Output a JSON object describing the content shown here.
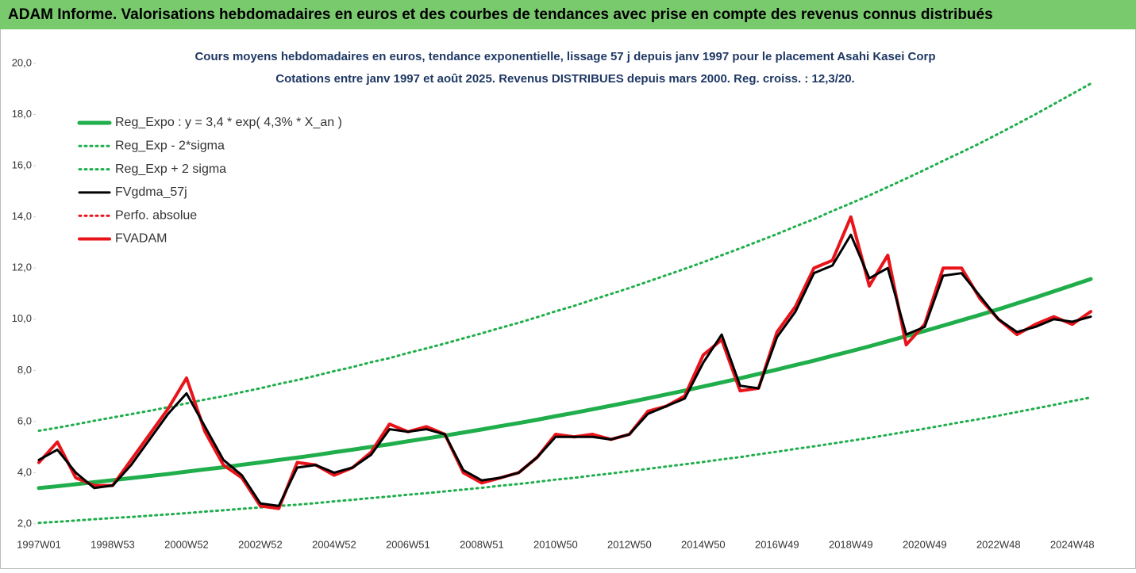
{
  "header": {
    "title": "ADAM Informe. Valorisations hebdomadaires en euros et des courbes de tendances avec prise en compte des revenus connus distribués"
  },
  "chart_data": {
    "type": "line",
    "title": "Cours moyens hebdomadaires en euros, tendance exponentielle, lissage 57 j depuis janv 1997 pour le placement Asahi Kasei Corp",
    "subtitle": "Cotations entre janv 1997 et août 2025. Revenus DISTRIBUES depuis mars 2000. Reg. croiss. : 12,3/20.",
    "categories": [
      "1997W01",
      null,
      null,
      null,
      "1998W53",
      null,
      null,
      null,
      "2000W52",
      null,
      null,
      null,
      "2002W52",
      null,
      null,
      null,
      "2004W52",
      null,
      null,
      null,
      "2006W51",
      null,
      null,
      null,
      "2008W51",
      null,
      null,
      null,
      "2010W50",
      null,
      null,
      null,
      "2012W50",
      null,
      null,
      null,
      "2014W50",
      null,
      null,
      null,
      "2016W49",
      null,
      null,
      null,
      "2018W49",
      null,
      null,
      null,
      "2020W49",
      null,
      null,
      null,
      "2022W48",
      null,
      null,
      null,
      "2024W48",
      null
    ],
    "ylim": [
      2,
      20
    ],
    "yticks": [
      {
        "value": 2,
        "label": "2,0"
      },
      {
        "value": 4,
        "label": "4,0"
      },
      {
        "value": 6,
        "label": "6,0"
      },
      {
        "value": 8,
        "label": "8,0"
      },
      {
        "value": 10,
        "label": "10,0"
      },
      {
        "value": 12,
        "label": "12,0"
      },
      {
        "value": 14,
        "label": "14,0"
      },
      {
        "value": 16,
        "label": "16,0"
      },
      {
        "value": 18,
        "label": "18,0"
      },
      {
        "value": 20,
        "label": "20,0"
      }
    ],
    "grid": false,
    "legend": "top-left",
    "series": [
      {
        "name": "Reg_Expo : y = 3,4 * exp( 4,3% *  X_an )",
        "color": "#1fae4b",
        "style": "solid",
        "width": 5,
        "values": [
          3.4,
          3.47,
          3.55,
          3.63,
          3.71,
          3.79,
          3.87,
          3.95,
          4.04,
          4.13,
          4.21,
          4.31,
          4.4,
          4.5,
          4.59,
          4.69,
          4.8,
          4.9,
          5.01,
          5.11,
          5.23,
          5.34,
          5.45,
          5.57,
          5.69,
          5.82,
          5.94,
          6.07,
          6.21,
          6.34,
          6.48,
          6.62,
          6.76,
          6.91,
          7.06,
          7.21,
          7.37,
          7.53,
          7.69,
          7.86,
          8.03,
          8.21,
          8.38,
          8.57,
          8.75,
          8.94,
          9.14,
          9.34,
          9.54,
          9.75,
          9.96,
          10.17,
          10.39,
          10.62,
          10.85,
          11.09,
          11.33,
          11.57
        ]
      },
      {
        "name": "Reg_Exp - 2*sigma",
        "color": "#1fae4b",
        "style": "dotted",
        "width": 3,
        "values": [
          2.04,
          2.08,
          2.13,
          2.18,
          2.23,
          2.27,
          2.32,
          2.37,
          2.42,
          2.48,
          2.53,
          2.59,
          2.64,
          2.7,
          2.75,
          2.81,
          2.88,
          2.94,
          3.01,
          3.07,
          3.14,
          3.2,
          3.27,
          3.34,
          3.41,
          3.49,
          3.56,
          3.64,
          3.73,
          3.8,
          3.89,
          3.97,
          4.06,
          4.15,
          4.24,
          4.33,
          4.42,
          4.52,
          4.61,
          4.72,
          4.82,
          4.93,
          5.03,
          5.14,
          5.25,
          5.36,
          5.48,
          5.6,
          5.72,
          5.85,
          5.98,
          6.1,
          6.23,
          6.37,
          6.51,
          6.65,
          6.8,
          6.94
        ]
      },
      {
        "name": "Reg_Exp + 2 sigma",
        "color": "#1fae4b",
        "style": "dotted",
        "width": 3,
        "values": [
          5.64,
          5.76,
          5.89,
          6.03,
          6.16,
          6.29,
          6.42,
          6.56,
          6.71,
          6.86,
          6.99,
          7.15,
          7.3,
          7.47,
          7.62,
          7.79,
          7.97,
          8.13,
          8.32,
          8.48,
          8.68,
          8.86,
          9.05,
          9.25,
          9.45,
          9.66,
          9.86,
          10.08,
          10.31,
          10.52,
          10.76,
          10.99,
          11.22,
          11.47,
          11.72,
          11.97,
          12.23,
          12.5,
          12.77,
          13.05,
          13.33,
          13.63,
          13.91,
          14.23,
          14.53,
          14.84,
          15.17,
          15.5,
          15.84,
          16.19,
          16.53,
          16.88,
          17.25,
          17.63,
          18.01,
          18.41,
          18.81,
          19.21
        ]
      },
      {
        "name": "FVgdma_57j",
        "color": "#000000",
        "style": "solid",
        "width": 3,
        "values": [
          4.5,
          4.9,
          4.0,
          3.4,
          3.5,
          4.3,
          5.3,
          6.3,
          7.1,
          5.8,
          4.5,
          3.9,
          2.8,
          2.7,
          4.2,
          4.3,
          4.0,
          4.2,
          4.7,
          5.7,
          5.6,
          5.7,
          5.5,
          4.1,
          3.7,
          3.8,
          4.0,
          4.6,
          5.4,
          5.4,
          5.4,
          5.3,
          5.5,
          6.3,
          6.6,
          6.9,
          8.3,
          9.4,
          7.4,
          7.3,
          9.3,
          10.3,
          11.8,
          12.1,
          13.3,
          11.6,
          12.0,
          9.4,
          9.7,
          11.7,
          11.8,
          10.9,
          10.0,
          9.5,
          9.7,
          10.0,
          9.9,
          10.1
        ]
      },
      {
        "name": "Perfo. absolue",
        "color": "#e8141a",
        "style": "dotted",
        "width": 3,
        "values": [
          4.4,
          5.2,
          3.8,
          3.5,
          3.5,
          4.5,
          5.5,
          6.5,
          7.7,
          5.6,
          4.3,
          3.8,
          2.7,
          2.6,
          4.4,
          4.3,
          3.9,
          4.2,
          4.8,
          5.9,
          5.6,
          5.8,
          5.5,
          4.0,
          3.6,
          3.8,
          4.0,
          4.6,
          5.5,
          5.4,
          5.5,
          5.3,
          5.5,
          6.4,
          6.6,
          7.0,
          8.6,
          9.2,
          7.2,
          7.3,
          9.5,
          10.5,
          12.0,
          12.3,
          14.0,
          11.3,
          12.5,
          9.0,
          9.8,
          12.0,
          12.0,
          10.8,
          10.0,
          9.4,
          9.8,
          10.1,
          9.8,
          10.3
        ]
      },
      {
        "name": "FVADAM",
        "color": "#e8141a",
        "style": "solid",
        "width": 4,
        "values": [
          4.4,
          5.2,
          3.8,
          3.5,
          3.5,
          4.5,
          5.5,
          6.5,
          7.7,
          5.6,
          4.3,
          3.8,
          2.7,
          2.6,
          4.4,
          4.3,
          3.9,
          4.2,
          4.8,
          5.9,
          5.6,
          5.8,
          5.5,
          4.0,
          3.6,
          3.8,
          4.0,
          4.6,
          5.5,
          5.4,
          5.5,
          5.3,
          5.5,
          6.4,
          6.6,
          7.0,
          8.6,
          9.2,
          7.2,
          7.3,
          9.5,
          10.5,
          12.0,
          12.3,
          14.0,
          11.3,
          12.5,
          9.0,
          9.8,
          12.0,
          12.0,
          10.8,
          10.0,
          9.4,
          9.8,
          10.1,
          9.8,
          10.3
        ]
      }
    ]
  }
}
